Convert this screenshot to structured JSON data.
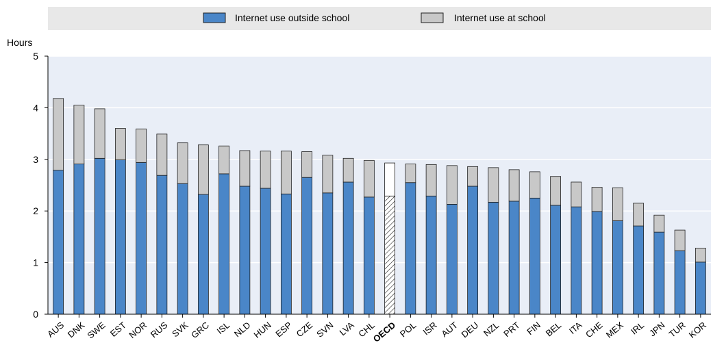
{
  "chart_data": {
    "type": "bar",
    "stacked": true,
    "ylabel": "Hours",
    "ylim": [
      0,
      5
    ],
    "yticks": [
      0,
      1,
      2,
      3,
      4,
      5
    ],
    "grid": true,
    "legend_position": "top",
    "categories": [
      "AUS",
      "DNK",
      "SWE",
      "EST",
      "NOR",
      "RUS",
      "SVK",
      "GRC",
      "ISL",
      "NLD",
      "HUN",
      "ESP",
      "CZE",
      "SVN",
      "LVA",
      "CHL",
      "OECD",
      "POL",
      "ISR",
      "AUT",
      "DEU",
      "NZL",
      "PRT",
      "FIN",
      "BEL",
      "ITA",
      "CHE",
      "MEX",
      "IRL",
      "JPN",
      "TUR",
      "KOR"
    ],
    "highlight_category": "OECD",
    "series": [
      {
        "name": "Internet use outside school",
        "color": "#4a86c8",
        "values": [
          2.79,
          2.91,
          3.02,
          2.99,
          2.94,
          2.69,
          2.53,
          2.32,
          2.72,
          2.48,
          2.44,
          2.33,
          2.65,
          2.35,
          2.56,
          2.27,
          2.29,
          2.55,
          2.29,
          2.13,
          2.48,
          2.17,
          2.19,
          2.25,
          2.11,
          2.08,
          1.99,
          1.81,
          1.71,
          1.59,
          1.23,
          1.01
        ]
      },
      {
        "name": "Internet use at school",
        "color": "#c8c8c8",
        "values": [
          1.39,
          1.14,
          0.96,
          0.61,
          0.65,
          0.8,
          0.79,
          0.96,
          0.54,
          0.69,
          0.72,
          0.83,
          0.5,
          0.73,
          0.46,
          0.71,
          0.64,
          0.36,
          0.61,
          0.75,
          0.38,
          0.67,
          0.61,
          0.51,
          0.56,
          0.48,
          0.47,
          0.64,
          0.44,
          0.33,
          0.4,
          0.27
        ]
      }
    ]
  },
  "colors": {
    "plot_bg": "#e9eef7",
    "legend_bg": "#e8e8e8",
    "grid": "#ffffff",
    "bar_outline": "#1f1f1f"
  }
}
